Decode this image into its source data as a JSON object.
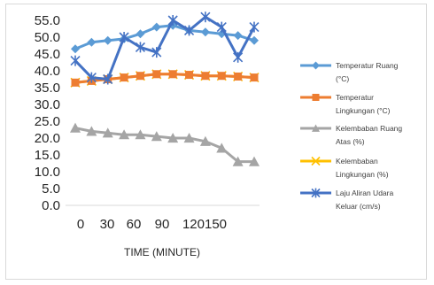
{
  "chart_data": {
    "type": "line",
    "xlabel": "TIME (MINUTE)",
    "ylim": [
      0,
      55
    ],
    "ytick_labels": [
      "0.0",
      "5.0",
      "10.0",
      "15.0",
      "20.0",
      "25.0",
      "30.0",
      "35.0",
      "40.0",
      "45.0",
      "50.0",
      "55.0"
    ],
    "x": [
      0,
      15,
      30,
      45,
      60,
      75,
      90,
      105,
      120,
      135,
      150,
      165
    ],
    "xtick_labels": [
      "0",
      "30",
      "60",
      "90",
      "120150"
    ],
    "legend_position": "right",
    "series": [
      {
        "name": "Temperatur Ruang (°C)",
        "color": "#5b9bd5",
        "marker": "diamond",
        "values": [
          46.5,
          48.5,
          49.0,
          49.5,
          51.0,
          53.0,
          53.5,
          52.0,
          51.5,
          51.0,
          50.5,
          49.0
        ]
      },
      {
        "name": "Temperatur Lingkungan (°C)",
        "color": "#ed7d31",
        "marker": "square",
        "values": [
          36.5,
          37.0,
          37.5,
          38.0,
          38.5,
          39.0,
          39.0,
          38.8,
          38.5,
          38.5,
          38.3,
          38.0
        ]
      },
      {
        "name": "Kelembaban Ruang Atas (%)",
        "color": "#a5a5a5",
        "marker": "triangle",
        "values": [
          23.0,
          22.0,
          21.5,
          21.0,
          21.0,
          20.5,
          20.0,
          20.0,
          19.0,
          17.0,
          13.0,
          13.0
        ]
      },
      {
        "name": "Kelembaban Lingkungan (%)",
        "color": "#ffc000",
        "marker": "x",
        "values": [
          36.5,
          37.0,
          37.5,
          38.0,
          38.5,
          39.0,
          39.0,
          38.8,
          38.5,
          38.5,
          38.3,
          38.0
        ]
      },
      {
        "name": "Laju Aliran Udara Keluar (cm/s)",
        "color": "#4472c4",
        "marker": "star",
        "values": [
          43.0,
          38.0,
          37.5,
          50.0,
          47.0,
          45.5,
          55.0,
          52.0,
          56.0,
          53.0,
          44.0,
          53.0
        ]
      }
    ],
    "legend_lines": [
      [
        "Temperatur Ruang",
        "(°C)"
      ],
      [
        "Temperatur",
        "Lingkungan  (°C)"
      ],
      [
        "Kelembaban Ruang",
        "Atas (%)"
      ],
      [
        "Kelembaban",
        "Lingkungan (%)"
      ],
      [
        "Laju Aliran Udara",
        "Keluar (cm/s)"
      ]
    ]
  }
}
